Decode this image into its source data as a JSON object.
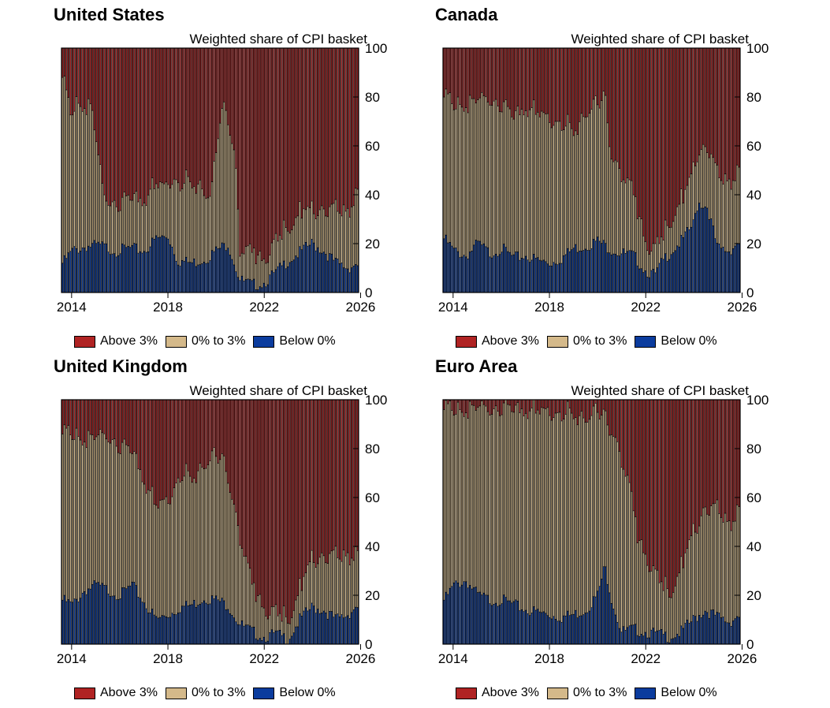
{
  "colors": {
    "above": "#b02323",
    "mid": "#d4b98a",
    "below": "#0b3c9e"
  },
  "legend": {
    "above": "Above 3%",
    "mid": "0% to 3%",
    "below": "Below 0%"
  },
  "chart_data": [
    {
      "type": "bar",
      "title": "United States",
      "ylabel": "Weighted share of CPI basket",
      "ylim": [
        0,
        100
      ],
      "yticks": [
        "0",
        "20",
        "40",
        "60",
        "80",
        "100"
      ],
      "xticks": [
        "2014",
        "2018",
        "2022",
        "2026"
      ],
      "stacked": true,
      "x_start": 2013.58,
      "x_end": 2025.92,
      "series": [
        {
          "name": "Below 0%",
          "keypoints": [
            [
              2013.6,
              12
            ],
            [
              2014.0,
              17
            ],
            [
              2014.6,
              19
            ],
            [
              2015.2,
              19
            ],
            [
              2015.8,
              17
            ],
            [
              2016.4,
              18
            ],
            [
              2017.0,
              17
            ],
            [
              2017.5,
              22
            ],
            [
              2018.0,
              23
            ],
            [
              2018.4,
              13
            ],
            [
              2019.0,
              12
            ],
            [
              2019.6,
              14
            ],
            [
              2020.0,
              17
            ],
            [
              2020.5,
              20
            ],
            [
              2021.0,
              5
            ],
            [
              2021.5,
              3
            ],
            [
              2022.0,
              4
            ],
            [
              2022.5,
              8
            ],
            [
              2023.0,
              13
            ],
            [
              2023.6,
              17
            ],
            [
              2024.0,
              20
            ],
            [
              2024.5,
              17
            ],
            [
              2025.0,
              12
            ],
            [
              2025.5,
              10
            ],
            [
              2025.9,
              12
            ]
          ]
        },
        {
          "name": "0% to 3%",
          "keypoints": [
            [
              2013.6,
              76
            ],
            [
              2013.9,
              57
            ],
            [
              2014.2,
              60
            ],
            [
              2014.8,
              56
            ],
            [
              2015.3,
              20
            ],
            [
              2015.8,
              20
            ],
            [
              2016.4,
              21
            ],
            [
              2016.9,
              21
            ],
            [
              2017.4,
              22
            ],
            [
              2017.9,
              21
            ],
            [
              2018.3,
              32
            ],
            [
              2018.8,
              33
            ],
            [
              2019.3,
              32
            ],
            [
              2019.8,
              25
            ],
            [
              2020.1,
              50
            ],
            [
              2020.4,
              57
            ],
            [
              2020.8,
              44
            ],
            [
              2021.0,
              12
            ],
            [
              2021.5,
              14
            ],
            [
              2022.0,
              10
            ],
            [
              2022.5,
              12
            ],
            [
              2023.0,
              14
            ],
            [
              2023.5,
              16
            ],
            [
              2024.0,
              14
            ],
            [
              2024.5,
              17
            ],
            [
              2025.0,
              22
            ],
            [
              2025.5,
              23
            ],
            [
              2025.9,
              30
            ]
          ]
        }
      ]
    },
    {
      "type": "bar",
      "title": "Canada",
      "ylabel": "Weighted share of CPI basket",
      "ylim": [
        0,
        100
      ],
      "yticks": [
        "0",
        "20",
        "40",
        "60",
        "80",
        "100"
      ],
      "xticks": [
        "2014",
        "2018",
        "2022",
        "2026"
      ],
      "stacked": true,
      "x_start": 2013.58,
      "x_end": 2025.92,
      "series": [
        {
          "name": "Below 0%",
          "keypoints": [
            [
              2013.6,
              22
            ],
            [
              2014.0,
              17
            ],
            [
              2014.5,
              15
            ],
            [
              2015.0,
              20
            ],
            [
              2015.5,
              16
            ],
            [
              2016.0,
              18
            ],
            [
              2016.5,
              14
            ],
            [
              2017.0,
              15
            ],
            [
              2017.5,
              13
            ],
            [
              2018.0,
              12
            ],
            [
              2018.5,
              14
            ],
            [
              2019.0,
              18
            ],
            [
              2019.5,
              19
            ],
            [
              2020.0,
              21
            ],
            [
              2020.5,
              18
            ],
            [
              2021.0,
              16
            ],
            [
              2021.5,
              15
            ],
            [
              2022.0,
              9
            ],
            [
              2022.4,
              7
            ],
            [
              2022.8,
              14
            ],
            [
              2023.2,
              18
            ],
            [
              2023.6,
              22
            ],
            [
              2024.0,
              28
            ],
            [
              2024.2,
              37
            ],
            [
              2024.6,
              35
            ],
            [
              2025.0,
              18
            ],
            [
              2025.5,
              17
            ],
            [
              2025.9,
              21
            ]
          ]
        },
        {
          "name": "0% to 3%",
          "keypoints": [
            [
              2013.6,
              58
            ],
            [
              2014.0,
              60
            ],
            [
              2014.5,
              62
            ],
            [
              2015.0,
              58
            ],
            [
              2015.5,
              63
            ],
            [
              2016.0,
              60
            ],
            [
              2016.5,
              58
            ],
            [
              2017.0,
              61
            ],
            [
              2017.5,
              60
            ],
            [
              2018.0,
              60
            ],
            [
              2018.5,
              56
            ],
            [
              2019.0,
              48
            ],
            [
              2019.5,
              56
            ],
            [
              2020.0,
              57
            ],
            [
              2020.3,
              60
            ],
            [
              2020.6,
              40
            ],
            [
              2021.0,
              32
            ],
            [
              2021.4,
              28
            ],
            [
              2021.8,
              18
            ],
            [
              2022.0,
              12
            ],
            [
              2022.4,
              10
            ],
            [
              2022.8,
              10
            ],
            [
              2023.2,
              15
            ],
            [
              2023.6,
              17
            ],
            [
              2024.0,
              22
            ],
            [
              2024.3,
              22
            ],
            [
              2024.6,
              25
            ],
            [
              2025.0,
              30
            ],
            [
              2025.5,
              28
            ],
            [
              2025.9,
              30
            ]
          ]
        }
      ]
    },
    {
      "type": "bar",
      "title": "United Kingdom",
      "ylabel": "Weighted share of CPI basket",
      "ylim": [
        0,
        100
      ],
      "yticks": [
        "0",
        "20",
        "40",
        "60",
        "80",
        "100"
      ],
      "xticks": [
        "2014",
        "2018",
        "2022",
        "2026"
      ],
      "stacked": true,
      "x_start": 2013.58,
      "x_end": 2025.92,
      "series": [
        {
          "name": "Below 0%",
          "keypoints": [
            [
              2013.6,
              18
            ],
            [
              2014.0,
              16
            ],
            [
              2014.5,
              22
            ],
            [
              2015.0,
              24
            ],
            [
              2015.5,
              22
            ],
            [
              2016.0,
              20
            ],
            [
              2016.5,
              24
            ],
            [
              2017.0,
              17
            ],
            [
              2017.5,
              10
            ],
            [
              2018.0,
              12
            ],
            [
              2018.5,
              15
            ],
            [
              2019.0,
              16
            ],
            [
              2019.5,
              19
            ],
            [
              2020.0,
              18
            ],
            [
              2020.5,
              16
            ],
            [
              2021.0,
              8
            ],
            [
              2021.5,
              5
            ],
            [
              2022.0,
              3
            ],
            [
              2022.5,
              4
            ],
            [
              2023.0,
              2
            ],
            [
              2023.5,
              10
            ],
            [
              2024.0,
              15
            ],
            [
              2024.5,
              14
            ],
            [
              2025.0,
              10
            ],
            [
              2025.5,
              12
            ],
            [
              2025.9,
              16
            ]
          ]
        },
        {
          "name": "0% to 3%",
          "keypoints": [
            [
              2013.6,
              68
            ],
            [
              2014.0,
              70
            ],
            [
              2014.5,
              62
            ],
            [
              2015.0,
              60
            ],
            [
              2015.5,
              63
            ],
            [
              2016.0,
              62
            ],
            [
              2016.5,
              55
            ],
            [
              2017.0,
              50
            ],
            [
              2017.5,
              46
            ],
            [
              2018.0,
              48
            ],
            [
              2018.5,
              55
            ],
            [
              2019.0,
              52
            ],
            [
              2019.5,
              56
            ],
            [
              2020.0,
              60
            ],
            [
              2020.5,
              55
            ],
            [
              2021.0,
              35
            ],
            [
              2021.5,
              20
            ],
            [
              2022.0,
              12
            ],
            [
              2022.5,
              8
            ],
            [
              2023.0,
              8
            ],
            [
              2023.5,
              12
            ],
            [
              2024.0,
              20
            ],
            [
              2024.5,
              22
            ],
            [
              2025.0,
              26
            ],
            [
              2025.5,
              24
            ],
            [
              2025.9,
              22
            ]
          ]
        }
      ]
    },
    {
      "type": "bar",
      "title": "Euro Area",
      "ylabel": "Weighted share of CPI basket",
      "ylim": [
        0,
        100
      ],
      "yticks": [
        "0",
        "20",
        "40",
        "60",
        "80",
        "100"
      ],
      "xticks": [
        "2014",
        "2018",
        "2022",
        "2026"
      ],
      "stacked": true,
      "x_start": 2013.58,
      "x_end": 2025.92,
      "series": [
        {
          "name": "Below 0%",
          "keypoints": [
            [
              2013.6,
              18
            ],
            [
              2014.0,
              24
            ],
            [
              2014.5,
              26
            ],
            [
              2015.0,
              20
            ],
            [
              2015.5,
              18
            ],
            [
              2016.0,
              18
            ],
            [
              2016.5,
              16
            ],
            [
              2017.0,
              14
            ],
            [
              2017.5,
              13
            ],
            [
              2018.0,
              12
            ],
            [
              2018.5,
              11
            ],
            [
              2019.0,
              12
            ],
            [
              2019.5,
              14
            ],
            [
              2020.0,
              20
            ],
            [
              2020.3,
              32
            ],
            [
              2020.6,
              18
            ],
            [
              2021.0,
              5
            ],
            [
              2021.5,
              6
            ],
            [
              2022.0,
              5
            ],
            [
              2022.5,
              4
            ],
            [
              2023.0,
              3
            ],
            [
              2023.5,
              5
            ],
            [
              2024.0,
              10
            ],
            [
              2024.5,
              14
            ],
            [
              2025.0,
              11
            ],
            [
              2025.5,
              9
            ],
            [
              2025.9,
              12
            ]
          ]
        },
        {
          "name": "0% to 3%",
          "keypoints": [
            [
              2013.6,
              78
            ],
            [
              2014.0,
              72
            ],
            [
              2014.5,
              70
            ],
            [
              2015.0,
              76
            ],
            [
              2015.5,
              78
            ],
            [
              2016.0,
              80
            ],
            [
              2016.5,
              80
            ],
            [
              2017.0,
              82
            ],
            [
              2017.5,
              82
            ],
            [
              2018.0,
              84
            ],
            [
              2018.5,
              84
            ],
            [
              2019.0,
              82
            ],
            [
              2019.5,
              80
            ],
            [
              2020.0,
              76
            ],
            [
              2020.3,
              60
            ],
            [
              2020.6,
              72
            ],
            [
              2021.0,
              70
            ],
            [
              2021.3,
              60
            ],
            [
              2021.7,
              38
            ],
            [
              2022.0,
              32
            ],
            [
              2022.5,
              22
            ],
            [
              2023.0,
              18
            ],
            [
              2023.5,
              26
            ],
            [
              2024.0,
              36
            ],
            [
              2024.5,
              42
            ],
            [
              2025.0,
              44
            ],
            [
              2025.5,
              40
            ],
            [
              2025.9,
              44
            ]
          ]
        }
      ]
    }
  ]
}
